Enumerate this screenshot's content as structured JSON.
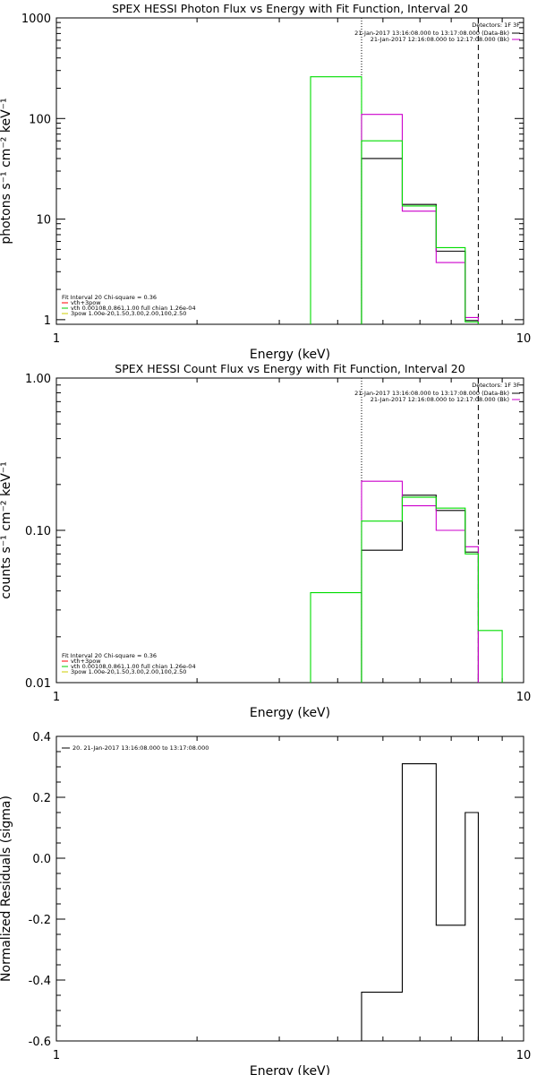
{
  "chart_data": [
    {
      "type": "line",
      "title": "SPEX HESSI Photon Flux vs Energy with Fit Function, Interval 20",
      "xlabel": "Energy (keV)",
      "ylabel": "photons s⁻¹ cm⁻² keV⁻¹",
      "xscale": "log",
      "yscale": "log",
      "xlim": [
        1,
        10
      ],
      "ylim": [
        0.9,
        1000
      ],
      "x_ticks": [
        {
          "value": 1,
          "label": "1"
        },
        {
          "value": 10,
          "label": "10"
        }
      ],
      "y_ticks": [
        {
          "value": 1,
          "label": "1"
        },
        {
          "value": 10,
          "label": "10"
        },
        {
          "value": 100,
          "label": "100"
        },
        {
          "value": 1000,
          "label": "1000"
        }
      ],
      "vlines": [
        {
          "x": 4.5,
          "style": "dotted"
        },
        {
          "x": 8.0,
          "style": "dashed"
        }
      ],
      "legend_top": {
        "placement": "top-right",
        "detectors_label": "Detectors: 1F 3F",
        "entries": [
          {
            "text": "21-Jan-2017 13:16:08.000 to 13:17:08.000 (Data-Bk)",
            "color": "#000000"
          },
          {
            "text": "21-Jan-2017 12:16:08.000 to 12:17:08.000 (Bk)",
            "color": "#cc00cc"
          }
        ]
      },
      "legend_bottom": {
        "placement": "bottom-left",
        "header": "Fit Interval 20   Chi-square = 0.36",
        "entries": [
          {
            "text": "vth+3pow",
            "color": "#ff0000"
          },
          {
            "text": "vth 0.00108,0.861,1.00   full chian 1.26e-04",
            "color": "#00cc00"
          },
          {
            "text": "3pow 1.00e-20,1.50,3.00,2.00,100,2.50",
            "color": "#cccc00"
          }
        ]
      },
      "series": [
        {
          "color": "#00dd00",
          "edges": [
            3.5,
            4.5
          ],
          "values": [
            260
          ]
        },
        {
          "color": "#000000",
          "edges": [
            4.5,
            5.5,
            6.5,
            7.5,
            8.0
          ],
          "values": [
            40,
            14,
            4.8,
            0.98
          ]
        },
        {
          "color": "#cc00cc",
          "edges": [
            4.5,
            5.5,
            6.5,
            7.5,
            8.0
          ],
          "values": [
            110,
            12,
            3.7,
            1.05
          ]
        },
        {
          "color": "#00dd00",
          "edges": [
            4.5,
            5.5,
            6.5,
            7.5,
            8.0
          ],
          "values": [
            60,
            13.5,
            5.2,
            0.95
          ]
        }
      ]
    },
    {
      "type": "line",
      "title": "SPEX HESSI Count Flux vs Energy with Fit Function, Interval 20",
      "xlabel": "Energy (keV)",
      "ylabel": "counts s⁻¹ cm⁻² keV⁻¹",
      "xscale": "log",
      "yscale": "log",
      "xlim": [
        1,
        10
      ],
      "ylim": [
        0.01,
        1.0
      ],
      "x_ticks": [
        {
          "value": 1,
          "label": "1"
        },
        {
          "value": 10,
          "label": "10"
        }
      ],
      "y_ticks": [
        {
          "value": 0.01,
          "label": "0.01"
        },
        {
          "value": 0.1,
          "label": "0.10"
        },
        {
          "value": 1.0,
          "label": "1.00"
        }
      ],
      "vlines": [
        {
          "x": 4.5,
          "style": "dotted"
        },
        {
          "x": 8.0,
          "style": "dashed"
        }
      ],
      "legend_top": {
        "placement": "top-right",
        "detectors_label": "Detectors: 1F 3F",
        "entries": [
          {
            "text": "21-Jan-2017 13:16:08.000 to 13:17:08.000 (Data-Bk)",
            "color": "#000000"
          },
          {
            "text": "21-Jan-2017 12:16:08.000 to 12:17:08.000 (Bk)",
            "color": "#cc00cc"
          }
        ]
      },
      "legend_bottom": {
        "placement": "bottom-left",
        "header": "Fit Interval 20   Chi-square = 0.36",
        "entries": [
          {
            "text": "vth+3pow",
            "color": "#ff0000"
          },
          {
            "text": "vth 0.00108,0.861,1.00   full chian 1.26e-04",
            "color": "#00cc00"
          },
          {
            "text": "3pow 1.00e-20,1.50,3.00,2.00,100,2.50",
            "color": "#cccc00"
          }
        ]
      },
      "series": [
        {
          "color": "#00dd00",
          "edges": [
            3.5,
            4.5
          ],
          "values": [
            0.039
          ]
        },
        {
          "color": "#000000",
          "edges": [
            4.5,
            5.5,
            6.5,
            7.5,
            8.0
          ],
          "values": [
            0.074,
            0.17,
            0.135,
            0.072
          ]
        },
        {
          "color": "#cc00cc",
          "edges": [
            4.5,
            5.5,
            6.5,
            7.5,
            8.0
          ],
          "values": [
            0.21,
            0.145,
            0.1,
            0.078
          ]
        },
        {
          "color": "#00dd00",
          "edges": [
            4.5,
            5.5,
            6.5,
            7.5,
            8.0,
            9.0
          ],
          "values": [
            0.115,
            0.165,
            0.14,
            0.07,
            0.022
          ]
        }
      ]
    },
    {
      "type": "line",
      "title": "",
      "xlabel": "Energy (keV)",
      "ylabel": "Normalized Residuals (sigma)",
      "xscale": "log",
      "yscale": "linear",
      "xlim": [
        1,
        10
      ],
      "ylim": [
        -0.6,
        0.4
      ],
      "x_ticks": [
        {
          "value": 1,
          "label": "1"
        },
        {
          "value": 10,
          "label": "10"
        }
      ],
      "y_ticks": [
        {
          "value": -0.6,
          "label": "-0.6"
        },
        {
          "value": -0.4,
          "label": "-0.4"
        },
        {
          "value": -0.2,
          "label": "-0.2"
        },
        {
          "value": 0.0,
          "label": "0.0"
        },
        {
          "value": 0.2,
          "label": "0.2"
        },
        {
          "value": 0.4,
          "label": "0.4"
        }
      ],
      "vlines": [],
      "legend_top": {
        "placement": "top-left",
        "detectors_label": "",
        "entries": [
          {
            "text": "20. 21-Jan-2017 13:16:08.000 to 13:17:08.000",
            "color": "#000000"
          }
        ]
      },
      "legend_bottom": null,
      "series": [
        {
          "color": "#000000",
          "edges": [
            4.5,
            5.5,
            6.5,
            7.5,
            8.0
          ],
          "values": [
            -0.44,
            0.31,
            -0.22,
            0.15
          ]
        }
      ]
    }
  ]
}
